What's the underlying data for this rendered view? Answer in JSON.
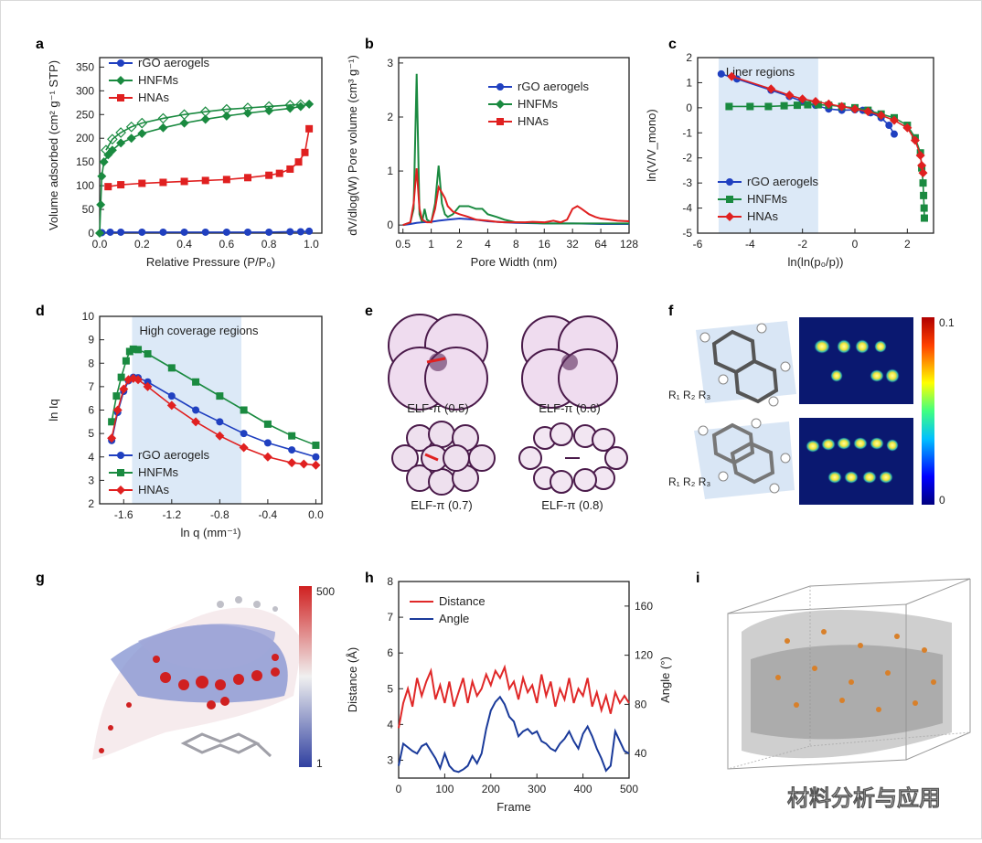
{
  "colors": {
    "rgo": "#2040c0",
    "hnfm": "#1a8a40",
    "hna": "#e02020",
    "blueband": "#dce9f7",
    "axis": "#222222",
    "distance": "#e02828",
    "angle": "#1a3a9a"
  },
  "panels": {
    "a": {
      "letter": "a"
    },
    "b": {
      "letter": "b"
    },
    "c": {
      "letter": "c"
    },
    "d": {
      "letter": "d"
    },
    "e": {
      "letter": "e",
      "labels": [
        "ELF-π (0.5)",
        "ELF-π (0.6)",
        "ELF-π (0.7)",
        "ELF-π (0.8)"
      ]
    },
    "f": {
      "letter": "f",
      "scale_max": "0.1",
      "scale_min": "0"
    },
    "g": {
      "letter": "g",
      "scale_max": "500",
      "scale_min": "1"
    },
    "h": {
      "letter": "h"
    },
    "i": {
      "letter": "i"
    }
  },
  "watermark": "材料分析与应用",
  "chart_data": [
    {
      "panel": "a",
      "type": "line",
      "xlabel": "Relative Pressure (P/P₀)",
      "ylabel": "Volume adsorbed (cm² g⁻¹ STP)",
      "xlim": [
        0,
        1.05
      ],
      "ylim": [
        0,
        370
      ],
      "xticks": [
        0.0,
        0.2,
        0.4,
        0.6,
        0.8,
        1.0
      ],
      "yticks": [
        0,
        50,
        100,
        150,
        200,
        250,
        300,
        350
      ],
      "xticklabels": [
        "0.0",
        "0.2",
        "0.4",
        "0.6",
        "0.8",
        "1.0"
      ],
      "yticklabels": [
        "0",
        "50",
        "100",
        "150",
        "200",
        "250",
        "300",
        "350"
      ],
      "legend": [
        "rGO aerogels",
        "HNFMs",
        "HNAs"
      ],
      "series": [
        {
          "name": "rGO aerogels",
          "key": "rgo",
          "marker": "circle",
          "x": [
            0.01,
            0.05,
            0.1,
            0.2,
            0.3,
            0.4,
            0.5,
            0.6,
            0.7,
            0.8,
            0.9,
            0.95,
            0.99
          ],
          "y": [
            1,
            2,
            2,
            2,
            2,
            2,
            2,
            2,
            2,
            2,
            3,
            3,
            4
          ]
        },
        {
          "name": "HNFMs",
          "key": "hnfm",
          "marker": "diamond",
          "x": [
            0.0,
            0.005,
            0.01,
            0.02,
            0.04,
            0.06,
            0.1,
            0.15,
            0.2,
            0.3,
            0.4,
            0.5,
            0.6,
            0.7,
            0.8,
            0.9,
            0.95,
            0.99
          ],
          "y": [
            0,
            60,
            120,
            150,
            165,
            175,
            190,
            200,
            210,
            222,
            232,
            240,
            247,
            253,
            258,
            263,
            267,
            272
          ]
        },
        {
          "name": "HNFMs desorption",
          "key": "hnfm",
          "marker": "diamond-open",
          "x": [
            0.03,
            0.06,
            0.1,
            0.15,
            0.2,
            0.3,
            0.4,
            0.5,
            0.6,
            0.7,
            0.8,
            0.9,
            0.95
          ],
          "y": [
            175,
            198,
            212,
            224,
            232,
            242,
            250,
            256,
            261,
            264,
            267,
            270,
            271
          ]
        },
        {
          "name": "HNAs",
          "key": "hna",
          "marker": "square",
          "x": [
            0.04,
            0.1,
            0.2,
            0.3,
            0.4,
            0.5,
            0.6,
            0.7,
            0.8,
            0.85,
            0.9,
            0.94,
            0.97,
            0.99
          ],
          "y": [
            98,
            102,
            105,
            107,
            109,
            111,
            113,
            117,
            122,
            126,
            135,
            150,
            170,
            220
          ]
        }
      ]
    },
    {
      "panel": "b",
      "type": "line",
      "xlabel": "Pore Width (nm)",
      "ylabel": "dV/dlog(W) Pore volume (cm³ g⁻¹)",
      "xscale": "log2",
      "xlim": [
        0.45,
        128
      ],
      "ylim": [
        -0.15,
        3.1
      ],
      "xticks": [
        0.5,
        1,
        2,
        4,
        8,
        16,
        32,
        64,
        128
      ],
      "xticklabels": [
        "0.5",
        "1",
        "2",
        "4",
        "8",
        "16",
        "32",
        "64",
        "128"
      ],
      "yticks": [
        0,
        1,
        2,
        3
      ],
      "yticklabels": [
        "0",
        "1",
        "2",
        "3"
      ],
      "legend": [
        "rGO aerogels",
        "HNFMs",
        "HNAs"
      ],
      "series": [
        {
          "name": "rGO aerogels",
          "key": "rgo",
          "x": [
            0.5,
            0.6,
            0.7,
            0.8,
            1,
            1.2,
            1.5,
            2,
            3,
            4,
            6,
            8,
            16,
            32,
            64,
            128
          ],
          "y": [
            0,
            0.02,
            0.04,
            0.05,
            0.06,
            0.08,
            0.1,
            0.12,
            0.1,
            0.07,
            0.05,
            0.04,
            0.03,
            0.03,
            0.02,
            0.02
          ]
        },
        {
          "name": "HNFMs",
          "key": "hnfm",
          "x": [
            0.5,
            0.6,
            0.65,
            0.7,
            0.75,
            0.8,
            0.85,
            0.9,
            1.0,
            1.1,
            1.2,
            1.3,
            1.4,
            1.5,
            1.7,
            2,
            2.5,
            3,
            3.5,
            4,
            5,
            6,
            8,
            12,
            16,
            24,
            32,
            48,
            64,
            96,
            128
          ],
          "y": [
            0,
            0.05,
            0.3,
            2.8,
            0.2,
            0.05,
            0.3,
            0.1,
            0.05,
            0.4,
            1.1,
            0.4,
            0.2,
            0.15,
            0.2,
            0.35,
            0.35,
            0.3,
            0.3,
            0.2,
            0.15,
            0.1,
            0.05,
            0.04,
            0.03,
            0.03,
            0.03,
            0.03,
            0.03,
            0.03,
            0.03
          ]
        },
        {
          "name": "HNAs",
          "key": "hna",
          "x": [
            0.5,
            0.6,
            0.65,
            0.7,
            0.75,
            0.8,
            0.9,
            1.0,
            1.1,
            1.2,
            1.3,
            1.4,
            1.5,
            1.7,
            2,
            2.5,
            3,
            4,
            5,
            6,
            8,
            10,
            12,
            16,
            20,
            24,
            28,
            32,
            36,
            40,
            48,
            56,
            64,
            80,
            96,
            128
          ],
          "y": [
            0,
            0.05,
            0.4,
            1.05,
            0.3,
            0.1,
            0.05,
            0.05,
            0.3,
            0.7,
            0.6,
            0.5,
            0.35,
            0.25,
            0.2,
            0.15,
            0.1,
            0.08,
            0.06,
            0.05,
            0.05,
            0.05,
            0.06,
            0.05,
            0.08,
            0.05,
            0.1,
            0.3,
            0.35,
            0.3,
            0.2,
            0.15,
            0.12,
            0.1,
            0.08,
            0.07
          ]
        }
      ]
    },
    {
      "panel": "c",
      "type": "line",
      "xlabel": "ln(ln(p₀/p))",
      "ylabel": "ln(V/V_mono)",
      "xlim": [
        -6,
        3
      ],
      "ylim": [
        -5,
        2
      ],
      "xticks": [
        -6,
        -4,
        -2,
        0,
        2
      ],
      "xticklabels": [
        "-6",
        "-4",
        "-2",
        "0",
        "2"
      ],
      "yticks": [
        -5,
        -4,
        -3,
        -2,
        -1,
        0,
        1,
        2
      ],
      "yticklabels": [
        "-5",
        "-4",
        "-3",
        "-2",
        "-1",
        "0",
        "1",
        "2"
      ],
      "band": {
        "x0": -5.2,
        "x1": -1.4,
        "label": "Liner regions"
      },
      "legend": [
        "rGO aerogels",
        "HNFMs",
        "HNAs"
      ],
      "series": [
        {
          "name": "rGO aerogels",
          "key": "rgo",
          "marker": "circle",
          "x": [
            -5.1,
            -4.5,
            -3.2,
            -2.5,
            -2.0,
            -1.5,
            -1.0,
            -0.5,
            0,
            0.3,
            0.6,
            1.0,
            1.3,
            1.5
          ],
          "y": [
            1.35,
            1.15,
            0.7,
            0.45,
            0.25,
            0.1,
            -0.05,
            -0.1,
            -0.08,
            -0.1,
            -0.2,
            -0.4,
            -0.7,
            -1.05
          ]
        },
        {
          "name": "HNFMs",
          "key": "hnfm",
          "marker": "square",
          "x": [
            -4.8,
            -4.0,
            -3.3,
            -2.7,
            -2.2,
            -1.8,
            -1.4,
            -1.0,
            -0.5,
            0,
            0.5,
            1.0,
            1.5,
            2.0,
            2.3,
            2.5,
            2.55,
            2.6,
            2.62,
            2.64,
            2.65
          ],
          "y": [
            0.05,
            0.05,
            0.05,
            0.08,
            0.1,
            0.12,
            0.12,
            0.1,
            0.05,
            0,
            -0.1,
            -0.25,
            -0.4,
            -0.7,
            -1.2,
            -1.8,
            -2.4,
            -3.0,
            -3.5,
            -4.0,
            -4.4
          ]
        },
        {
          "name": "HNAs",
          "key": "hna",
          "marker": "diamond",
          "x": [
            -4.7,
            -3.2,
            -2.5,
            -2.0,
            -1.5,
            -1.0,
            -0.5,
            0,
            0.5,
            1.0,
            1.5,
            2.0,
            2.3,
            2.5,
            2.55,
            2.6
          ],
          "y": [
            1.25,
            0.75,
            0.5,
            0.35,
            0.25,
            0.15,
            0.05,
            -0.05,
            -0.15,
            -0.3,
            -0.5,
            -0.8,
            -1.3,
            -1.9,
            -2.3,
            -2.6
          ]
        }
      ]
    },
    {
      "panel": "d",
      "type": "line",
      "xlabel": "ln q (mm⁻¹)",
      "ylabel": "ln Iq",
      "xlim": [
        -1.8,
        0.05
      ],
      "ylim": [
        2,
        10
      ],
      "xticks": [
        -1.6,
        -1.2,
        -0.8,
        -0.4,
        0.0
      ],
      "xticklabels": [
        "-1.6",
        "-1.2",
        "-0.8",
        "-0.4",
        "0.0"
      ],
      "yticks": [
        2,
        3,
        4,
        5,
        6,
        7,
        8,
        9,
        10
      ],
      "yticklabels": [
        "2",
        "3",
        "4",
        "5",
        "6",
        "7",
        "8",
        "9",
        "10"
      ],
      "band": {
        "x0": -1.53,
        "x1": -0.62,
        "label": "High coverage regions"
      },
      "legend": [
        "rGO aerogels",
        "HNFMs",
        "HNAs"
      ],
      "series": [
        {
          "name": "rGO aerogels",
          "key": "rgo",
          "marker": "circle",
          "x": [
            -1.7,
            -1.65,
            -1.6,
            -1.56,
            -1.52,
            -1.48,
            -1.4,
            -1.2,
            -1.0,
            -0.8,
            -0.6,
            -0.4,
            -0.2,
            0
          ],
          "y": [
            4.7,
            5.9,
            6.8,
            7.25,
            7.4,
            7.38,
            7.2,
            6.6,
            6.0,
            5.5,
            5.0,
            4.6,
            4.3,
            4.0
          ]
        },
        {
          "name": "HNFMs",
          "key": "hnfm",
          "marker": "square",
          "x": [
            -1.7,
            -1.66,
            -1.62,
            -1.58,
            -1.55,
            -1.52,
            -1.48,
            -1.4,
            -1.2,
            -1.0,
            -0.8,
            -0.6,
            -0.4,
            -0.2,
            0
          ],
          "y": [
            5.5,
            6.6,
            7.4,
            8.1,
            8.5,
            8.6,
            8.58,
            8.4,
            7.8,
            7.2,
            6.6,
            6.0,
            5.4,
            4.9,
            4.5
          ]
        },
        {
          "name": "HNAs",
          "key": "hna",
          "marker": "diamond",
          "x": [
            -1.7,
            -1.65,
            -1.6,
            -1.56,
            -1.52,
            -1.48,
            -1.4,
            -1.2,
            -1.0,
            -0.8,
            -0.6,
            -0.4,
            -0.2,
            -0.1,
            0
          ],
          "y": [
            4.8,
            6.0,
            6.9,
            7.3,
            7.35,
            7.3,
            7.0,
            6.2,
            5.5,
            4.9,
            4.4,
            4.0,
            3.75,
            3.7,
            3.65
          ]
        }
      ]
    },
    {
      "panel": "h",
      "type": "line",
      "xlabel": "Frame",
      "ylabel": "Distance (Å)",
      "y2label": "Angle (°)",
      "xlim": [
        0,
        500
      ],
      "ylim": [
        2.5,
        8
      ],
      "y2lim": [
        20,
        180
      ],
      "xticks": [
        0,
        100,
        200,
        300,
        400,
        500
      ],
      "xticklabels": [
        "0",
        "100",
        "200",
        "300",
        "400",
        "500"
      ],
      "yticks": [
        3,
        4,
        5,
        6,
        7,
        8
      ],
      "yticklabels": [
        "3",
        "4",
        "5",
        "6",
        "7",
        "8"
      ],
      "y2ticks": [
        40,
        80,
        120,
        160
      ],
      "y2ticklabels": [
        "40",
        "80",
        "120",
        "160"
      ],
      "legend": [
        "Distance",
        "Angle"
      ],
      "series": [
        {
          "name": "Distance",
          "key": "distance",
          "axis": "left",
          "x": [
            0,
            10,
            20,
            30,
            40,
            50,
            60,
            70,
            80,
            90,
            100,
            110,
            120,
            130,
            140,
            150,
            160,
            170,
            180,
            190,
            200,
            210,
            220,
            230,
            240,
            250,
            260,
            270,
            280,
            290,
            300,
            310,
            320,
            330,
            340,
            350,
            360,
            370,
            380,
            390,
            400,
            410,
            420,
            430,
            440,
            450,
            460,
            470,
            480,
            490,
            500
          ],
          "y": [
            3.9,
            4.6,
            5.0,
            4.5,
            5.3,
            4.8,
            5.2,
            5.5,
            4.7,
            5.1,
            4.6,
            5.2,
            4.5,
            4.9,
            5.3,
            4.6,
            5.2,
            4.8,
            5.0,
            5.4,
            5.1,
            5.5,
            5.3,
            5.6,
            5.0,
            5.2,
            4.7,
            5.3,
            4.9,
            5.1,
            4.6,
            5.4,
            4.8,
            5.2,
            4.5,
            5.0,
            4.7,
            5.3,
            4.6,
            5.0,
            4.8,
            5.3,
            4.5,
            4.9,
            4.4,
            4.8,
            4.3,
            4.9,
            4.6,
            4.8,
            4.6
          ]
        },
        {
          "name": "Angle",
          "key": "angle",
          "axis": "right",
          "x": [
            0,
            10,
            20,
            30,
            40,
            50,
            60,
            70,
            80,
            90,
            100,
            110,
            120,
            130,
            140,
            150,
            160,
            170,
            180,
            190,
            200,
            210,
            220,
            230,
            240,
            250,
            260,
            270,
            280,
            290,
            300,
            310,
            320,
            330,
            340,
            350,
            360,
            370,
            380,
            390,
            400,
            410,
            420,
            430,
            440,
            450,
            460,
            470,
            480,
            490,
            500
          ],
          "y": [
            30,
            48,
            45,
            42,
            40,
            46,
            48,
            42,
            36,
            28,
            40,
            30,
            26,
            25,
            27,
            30,
            38,
            32,
            40,
            60,
            75,
            82,
            86,
            80,
            70,
            66,
            54,
            58,
            60,
            56,
            58,
            50,
            48,
            44,
            42,
            48,
            52,
            58,
            50,
            44,
            56,
            62,
            54,
            44,
            36,
            26,
            30,
            58,
            50,
            42,
            40
          ]
        }
      ]
    }
  ]
}
